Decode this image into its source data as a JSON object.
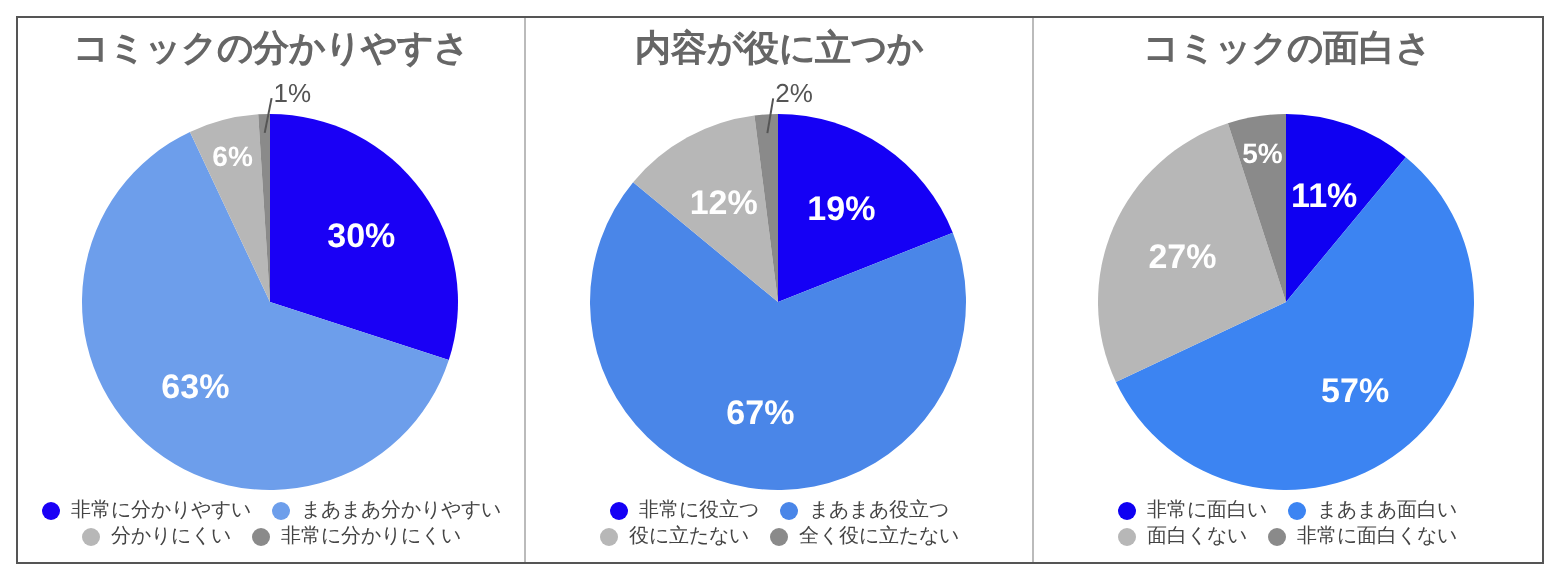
{
  "chart_data": [
    {
      "type": "pie",
      "title": "コミックの分かりやすさ",
      "categories": [
        "非常に分かりやすい",
        "まあまあ分かりやすい",
        "分かりにくい",
        "非常に分かりにくい"
      ],
      "values": [
        30,
        63,
        6,
        1
      ],
      "value_labels": [
        "30%",
        "63%",
        "6%",
        "1%"
      ],
      "colors": [
        "#1a00f5",
        "#6d9eeb",
        "#b7b7b7",
        "#8a8a8a"
      ],
      "legend": "bottom"
    },
    {
      "type": "pie",
      "title": "内容が役に立つか",
      "categories": [
        "非常に役立つ",
        "まあまあ役立つ",
        "役に立たない",
        "全く役に立たない"
      ],
      "values": [
        19,
        67,
        12,
        2
      ],
      "value_labels": [
        "19%",
        "67%",
        "12%",
        "2%"
      ],
      "colors": [
        "#1500f5",
        "#4a86e8",
        "#b7b7b7",
        "#8a8a8a"
      ],
      "legend": "bottom"
    },
    {
      "type": "pie",
      "title": "コミックの面白さ",
      "categories": [
        "非常に面白い",
        "まあまあ面白い",
        "面白くない",
        "非常に面白くない"
      ],
      "values": [
        11,
        57,
        27,
        5
      ],
      "value_labels": [
        "11%",
        "57%",
        "27%",
        "5%"
      ],
      "colors": [
        "#0f00f2",
        "#3c84f2",
        "#b7b7b7",
        "#8a8a8a"
      ],
      "legend": "bottom"
    }
  ]
}
